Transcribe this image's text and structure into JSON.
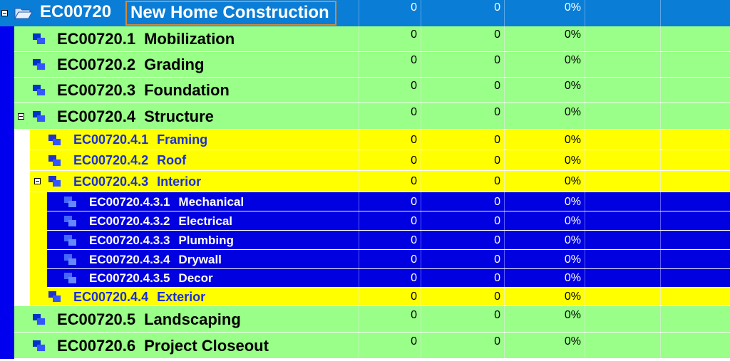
{
  "colors": {
    "header_bg": "#0a7dd6",
    "level1_bg": "#99ff88",
    "level2_bg": "#ffff00",
    "level3_bg": "#0000e0",
    "left_rail": "#0000ee",
    "title_outline": "#d08a3a"
  },
  "icons": {
    "root": "folder-open-icon",
    "task": "task-blocks-icon"
  },
  "root": {
    "code": "EC00720",
    "title": "New Home Construction",
    "col1": "0",
    "col2": "0",
    "col3": "0%"
  },
  "rows": [
    {
      "code": "EC00720.1",
      "name": "Mobilization",
      "col1": "0",
      "col2": "0",
      "col3": "0%"
    },
    {
      "code": "EC00720.2",
      "name": "Grading",
      "col1": "0",
      "col2": "0",
      "col3": "0%"
    },
    {
      "code": "EC00720.3",
      "name": "Foundation",
      "col1": "0",
      "col2": "0",
      "col3": "0%"
    },
    {
      "code": "EC00720.4",
      "name": "Structure",
      "col1": "0",
      "col2": "0",
      "col3": "0%"
    },
    {
      "code": "EC00720.4.1",
      "name": "Framing",
      "col1": "0",
      "col2": "0",
      "col3": "0%"
    },
    {
      "code": "EC00720.4.2",
      "name": "Roof",
      "col1": "0",
      "col2": "0",
      "col3": "0%"
    },
    {
      "code": "EC00720.4.3",
      "name": "Interior",
      "col1": "0",
      "col2": "0",
      "col3": "0%"
    },
    {
      "code": "EC00720.4.3.1",
      "name": "Mechanical",
      "col1": "0",
      "col2": "0",
      "col3": "0%"
    },
    {
      "code": "EC00720.4.3.2",
      "name": "Electrical",
      "col1": "0",
      "col2": "0",
      "col3": "0%"
    },
    {
      "code": "EC00720.4.3.3",
      "name": "Plumbing",
      "col1": "0",
      "col2": "0",
      "col3": "0%"
    },
    {
      "code": "EC00720.4.3.4",
      "name": "Drywall",
      "col1": "0",
      "col2": "0",
      "col3": "0%"
    },
    {
      "code": "EC00720.4.3.5",
      "name": "Decor",
      "col1": "0",
      "col2": "0",
      "col3": "0%"
    },
    {
      "code": "EC00720.4.4",
      "name": "Exterior",
      "col1": "0",
      "col2": "0",
      "col3": "0%"
    },
    {
      "code": "EC00720.5",
      "name": "Landscaping",
      "col1": "0",
      "col2": "0",
      "col3": "0%"
    },
    {
      "code": "EC00720.6",
      "name": "Project Closeout",
      "col1": "0",
      "col2": "0",
      "col3": "0%"
    }
  ]
}
